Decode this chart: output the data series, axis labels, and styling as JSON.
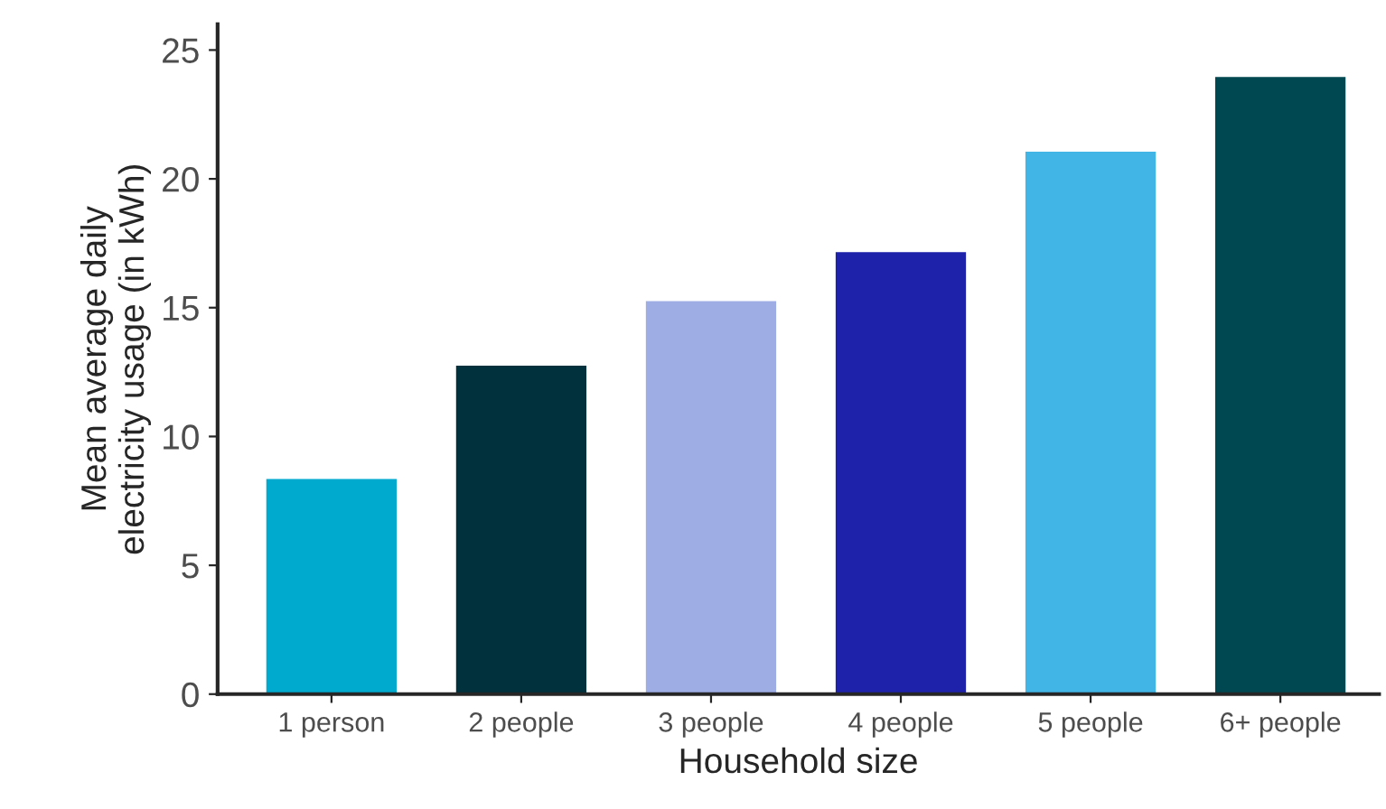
{
  "chart_data": {
    "type": "bar",
    "xlabel": "Household size",
    "ylabel": "Mean average daily\nelectricity usage (in kWh)",
    "categories": [
      "1 person",
      "2 people",
      "3 people",
      "4 people",
      "5 people",
      "6+ people"
    ],
    "values": [
      8.4,
      12.8,
      15.3,
      17.2,
      21.1,
      24.0
    ],
    "colors": [
      "#00a9ce",
      "#00313c",
      "#9eaee5",
      "#1e22aa",
      "#41b6e6",
      "#004851"
    ],
    "ylim": [
      0,
      26
    ],
    "yticks": [
      0,
      5,
      10,
      15,
      20,
      25
    ],
    "grid": false,
    "legend": false
  }
}
